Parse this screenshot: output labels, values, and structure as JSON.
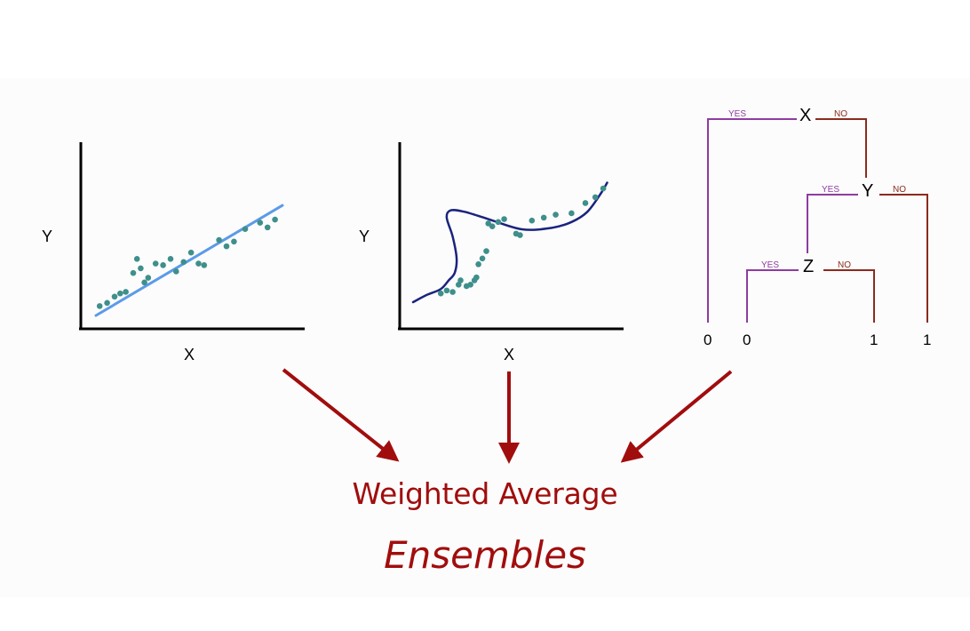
{
  "colors": {
    "axis": "#000000",
    "linear_fit": "#5b9be8",
    "curve_fit": "#1a237e",
    "points": "#3f8f8b",
    "yes_branch": "#8e3ca0",
    "no_branch": "#8b2b1e",
    "arrow": "#a10d0d",
    "caption": "#a10d0d"
  },
  "plot1": {
    "name": "linear-regression-plot",
    "xlabel": "X",
    "ylabel": "Y",
    "points": [
      [
        2,
        6
      ],
      [
        6,
        8
      ],
      [
        10,
        12
      ],
      [
        13,
        14
      ],
      [
        16,
        15
      ],
      [
        20,
        27
      ],
      [
        22,
        36
      ],
      [
        24,
        30
      ],
      [
        26,
        21
      ],
      [
        28,
        24
      ],
      [
        32,
        33
      ],
      [
        36,
        32
      ],
      [
        40,
        36
      ],
      [
        43,
        28
      ],
      [
        47,
        34
      ],
      [
        51,
        40
      ],
      [
        55,
        33
      ],
      [
        58,
        32
      ],
      [
        66,
        48
      ],
      [
        70,
        44
      ],
      [
        74,
        47
      ],
      [
        80,
        55
      ],
      [
        88,
        59
      ],
      [
        92,
        56
      ],
      [
        96,
        61
      ]
    ],
    "fit": [
      [
        0,
        0
      ],
      [
        100,
        70
      ]
    ]
  },
  "plot2": {
    "name": "curve-fit-plot",
    "xlabel": "X",
    "ylabel": "Y",
    "points": [
      [
        14,
        6
      ],
      [
        17,
        8
      ],
      [
        20,
        7
      ],
      [
        23,
        12
      ],
      [
        24,
        15
      ],
      [
        27,
        11
      ],
      [
        29,
        12
      ],
      [
        31,
        15
      ],
      [
        32,
        17
      ],
      [
        33,
        26
      ],
      [
        35,
        30
      ],
      [
        37,
        35
      ],
      [
        38,
        54
      ],
      [
        40,
        52
      ],
      [
        43,
        55
      ],
      [
        46,
        57
      ],
      [
        52,
        47
      ],
      [
        54,
        46
      ],
      [
        60,
        56
      ],
      [
        66,
        58
      ],
      [
        72,
        60
      ],
      [
        80,
        61
      ],
      [
        87,
        68
      ],
      [
        92,
        72
      ],
      [
        96,
        78
      ]
    ],
    "curve": [
      [
        0,
        0
      ],
      [
        7,
        5
      ],
      [
        14,
        9
      ],
      [
        18,
        15
      ],
      [
        21,
        20
      ],
      [
        22,
        30
      ],
      [
        20,
        45
      ],
      [
        17,
        58
      ],
      [
        19,
        63
      ],
      [
        26,
        62
      ],
      [
        38,
        57
      ],
      [
        55,
        50
      ],
      [
        70,
        51
      ],
      [
        80,
        55
      ],
      [
        88,
        62
      ],
      [
        95,
        75
      ],
      [
        98,
        82
      ]
    ]
  },
  "tree": {
    "nodes": {
      "x": "X",
      "y": "Y",
      "z": "Z"
    },
    "branch_labels": {
      "yes": "YES",
      "no": "NO"
    },
    "leaves": [
      "0",
      "0",
      "1",
      "1"
    ]
  },
  "captions": {
    "main": "Weighted Average",
    "sub": "Ensembles"
  }
}
